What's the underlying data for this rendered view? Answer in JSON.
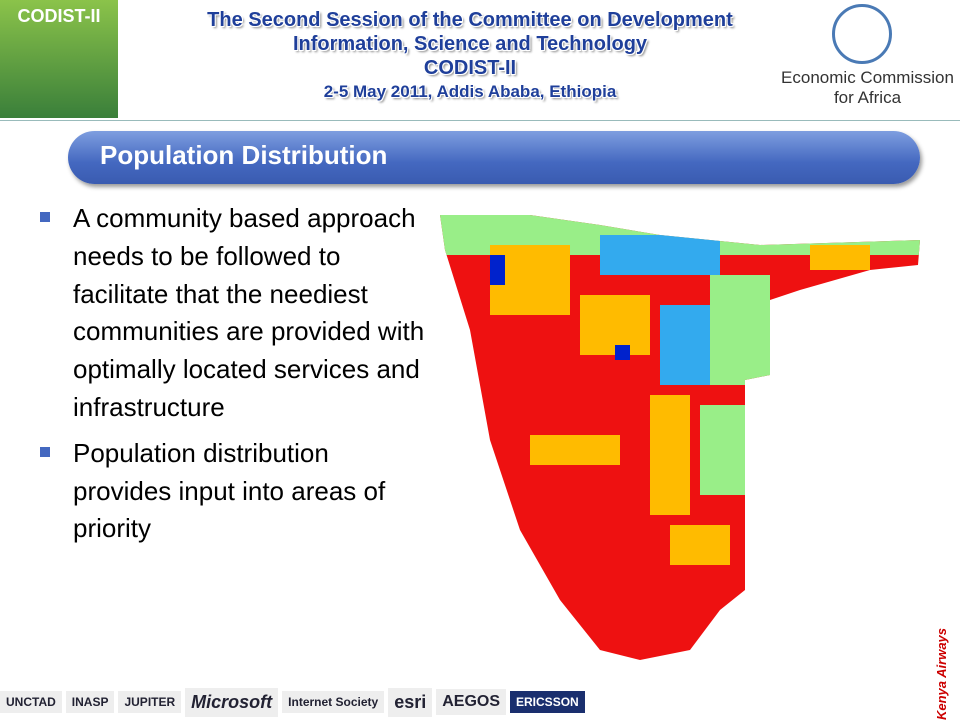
{
  "header": {
    "title_lines": [
      "The Second Session of the Committee on Development",
      "Information, Science and Technology",
      "CODIST-II",
      "2-5 May 2011, Addis Ababa, Ethiopia"
    ],
    "logo_left": "CODIST-II",
    "org": [
      "Economic Commission",
      "for Africa"
    ]
  },
  "section_title": "Population Distribution",
  "bullets": [
    "A community based approach needs to be followed to facilitate that the neediest communities are provided with optimally located services and infrastructure",
    "Population distribution provides input into areas of priority"
  ],
  "sponsors": [
    "UNCTAD",
    "INASP",
    "JUPITER",
    "Microsoft",
    "Internet Society",
    "esri",
    "AEGOS",
    "ERICSSON"
  ],
  "sidebar": "Kenya Airways"
}
